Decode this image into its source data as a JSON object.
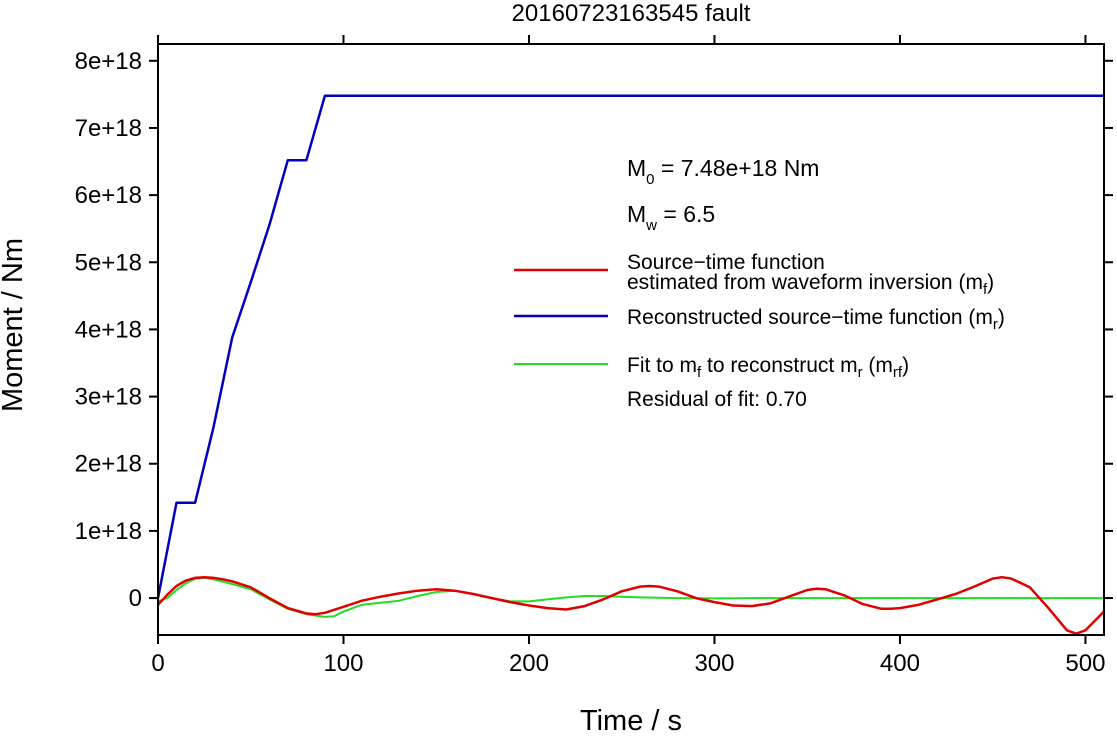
{
  "chart_data": {
    "type": "line",
    "title": "20160723163545 fault",
    "xlabel": "Time / s",
    "ylabel": "Moment / Nm",
    "xlim": [
      0,
      510
    ],
    "ylim": [
      -5.5e+17,
      8.25e+18
    ],
    "xticks": [
      0,
      100,
      200,
      300,
      400,
      500
    ],
    "xtick_labels": [
      "0",
      "100",
      "200",
      "300",
      "400",
      "500"
    ],
    "yticks": [
      0,
      1e+18,
      2e+18,
      3e+18,
      4e+18,
      5e+18,
      6e+18,
      7e+18,
      8e+18
    ],
    "ytick_labels": [
      "0",
      "1e+18",
      "2e+18",
      "3e+18",
      "4e+18",
      "5e+18",
      "6e+18",
      "7e+18",
      "8e+18"
    ],
    "grid": false,
    "legend_position": "right",
    "annotations": {
      "m0": {
        "base": "M",
        "sub": "0",
        "text": " = 7.48e+18 Nm"
      },
      "mw": {
        "base": "M",
        "sub": "w",
        "text": " = 6.5"
      },
      "residual": "Residual of fit: 0.70"
    },
    "legend": [
      {
        "lines": [
          "Source−time function",
          "estimated from waveform inversion (m",
          "f",
          ")"
        ],
        "color": "#e00000"
      },
      {
        "lines": [
          "Reconstructed source−time function (m",
          "r",
          ")"
        ],
        "color": "#0000c0"
      },
      {
        "lines": [
          "Fit to m",
          "f",
          " to reconstruct m",
          "r",
          " (m",
          "rf",
          ")"
        ],
        "color": "#22dd22"
      }
    ],
    "series": [
      {
        "name": "Source−time function estimated from waveform inversion (mf)",
        "color": "#e00000",
        "x": [
          0,
          5,
          10,
          15,
          20,
          25,
          30,
          35,
          40,
          50,
          60,
          70,
          80,
          85,
          90,
          100,
          110,
          120,
          130,
          140,
          150,
          160,
          170,
          180,
          190,
          200,
          210,
          220,
          230,
          240,
          250,
          260,
          265,
          270,
          280,
          290,
          300,
          310,
          320,
          330,
          340,
          350,
          355,
          360,
          370,
          380,
          390,
          395,
          400,
          410,
          420,
          430,
          440,
          450,
          455,
          460,
          470,
          480,
          490,
          495,
          500,
          510
        ],
        "y": [
          -1e+17,
          5e+16,
          1.8e+17,
          2.6e+17,
          3e+17,
          3.1e+17,
          3e+17,
          2.8e+17,
          2.5e+17,
          1.6e+17,
          0,
          -1.5e+17,
          -2.3e+17,
          -2.4e+17,
          -2.2e+17,
          -1.3e+17,
          -4e+16,
          2e+16,
          7e+16,
          1.1e+17,
          1.3e+17,
          1.1e+17,
          6e+16,
          0,
          -6e+16,
          -1.1e+17,
          -1.5e+17,
          -1.7e+17,
          -1.2e+17,
          -2e+16,
          1e+17,
          1.7e+17,
          1.8e+17,
          1.7e+17,
          1e+17,
          0,
          -6e+16,
          -1.1e+17,
          -1.2e+17,
          -8e+16,
          2e+16,
          1.2e+17,
          1.4e+17,
          1.3e+17,
          4e+16,
          -9e+16,
          -1.6e+17,
          -1.6e+17,
          -1.5e+17,
          -1e+17,
          -2e+16,
          6e+16,
          1.7e+17,
          2.9e+17,
          3.1e+17,
          2.9e+17,
          1.6e+17,
          -1.5e+17,
          -4.8e+17,
          -5.3e+17,
          -4.8e+17,
          -2e+17
        ]
      },
      {
        "name": "Reconstructed source−time function (mr)",
        "color": "#0000c0",
        "x": [
          0,
          10,
          20,
          30,
          40,
          50,
          60,
          70,
          80,
          90,
          510
        ],
        "y": [
          0,
          1.42e+18,
          1.42e+18,
          2.55e+18,
          3.88e+18,
          4.7e+18,
          5.55e+18,
          6.52e+18,
          6.52e+18,
          7.48e+18,
          7.48e+18
        ]
      },
      {
        "name": "Fit to mf to reconstruct mr (mrf)",
        "color": "#22dd22",
        "x": [
          0,
          5,
          10,
          15,
          20,
          25,
          30,
          40,
          50,
          60,
          70,
          80,
          90,
          95,
          100,
          110,
          120,
          130,
          140,
          150,
          160,
          170,
          180,
          190,
          200,
          210,
          220,
          230,
          240,
          250,
          260,
          270,
          280,
          300,
          320,
          350,
          400,
          450,
          510
        ],
        "y": [
          -5e+16,
          0,
          1.2e+17,
          2.2e+17,
          2.9e+17,
          3e+17,
          2.8e+17,
          2.1e+17,
          1.3e+17,
          -2e+16,
          -1.6e+17,
          -2.4e+17,
          -2.8e+17,
          -2.7e+17,
          -2e+17,
          -1e+17,
          -7e+16,
          -4e+16,
          3e+16,
          9e+16,
          1.1e+17,
          6e+16,
          0,
          -5e+16,
          -5e+16,
          -2e+16,
          1e+16,
          3e+16,
          3e+16,
          2e+16,
          1e+16,
          5000000000000000.0,
          0,
          -5000000000000000.0,
          0,
          0,
          0,
          0,
          0
        ]
      }
    ]
  }
}
